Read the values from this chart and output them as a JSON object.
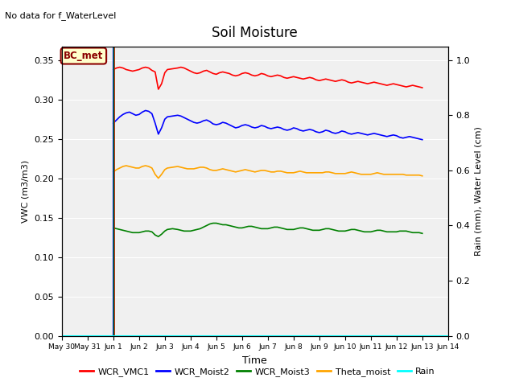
{
  "title": "Soil Moisture",
  "xlabel": "Time",
  "ylabel_left": "VWC (m3/m3)",
  "ylabel_right": "Rain (mm), Water Level (cm)",
  "ylim_left": [
    0.0,
    0.3675
  ],
  "ylim_right": [
    0.0,
    1.05
  ],
  "no_data_text": "No data for f_WaterLevel",
  "bc_met_label": "BC_met",
  "plot_bg_color": "#f0f0f0",
  "fig_bg_color": "#ffffff",
  "x_tick_labels": [
    "May 30",
    "May 31",
    "Jun 1",
    "Jun 2",
    "Jun 3",
    "Jun 4",
    "Jun 5",
    "Jun 6",
    "Jun 7",
    "Jun 8",
    "Jun 9",
    "Jun 10",
    "Jun 11",
    "Jun 12",
    "Jun 13",
    "Jun 14"
  ],
  "x_tick_positions": [
    0,
    1,
    2,
    3,
    4,
    5,
    6,
    7,
    8,
    9,
    10,
    11,
    12,
    13,
    14,
    15
  ],
  "yticks_left": [
    0.0,
    0.05,
    0.1,
    0.15,
    0.2,
    0.25,
    0.3,
    0.35
  ],
  "yticks_right": [
    0.0,
    0.2,
    0.4,
    0.6,
    0.8,
    1.0
  ],
  "vline_x": 2.0,
  "legend_items": [
    {
      "label": "WCR_VMC1",
      "color": "red"
    },
    {
      "label": "WCR_Moist2",
      "color": "blue"
    },
    {
      "label": "WCR_Moist3",
      "color": "green"
    },
    {
      "label": "Theta_moist",
      "color": "orange"
    },
    {
      "label": "Rain",
      "color": "cyan"
    }
  ],
  "series": {
    "WCR_VMC1": {
      "color": "red",
      "linewidth": 1.2,
      "data_x": [
        2.0,
        2.125,
        2.25,
        2.375,
        2.5,
        2.625,
        2.75,
        2.875,
        3.0,
        3.125,
        3.25,
        3.375,
        3.5,
        3.625,
        3.75,
        3.875,
        4.0,
        4.1,
        4.3,
        4.5,
        4.625,
        4.75,
        4.875,
        5.0,
        5.125,
        5.25,
        5.375,
        5.5,
        5.625,
        5.75,
        5.875,
        6.0,
        6.125,
        6.25,
        6.375,
        6.5,
        6.625,
        6.75,
        6.875,
        7.0,
        7.125,
        7.25,
        7.375,
        7.5,
        7.625,
        7.75,
        7.875,
        8.0,
        8.125,
        8.25,
        8.375,
        8.5,
        8.625,
        8.75,
        8.875,
        9.0,
        9.125,
        9.25,
        9.375,
        9.5,
        9.625,
        9.75,
        9.875,
        10.0,
        10.125,
        10.25,
        10.375,
        10.5,
        10.625,
        10.75,
        10.875,
        11.0,
        11.125,
        11.25,
        11.375,
        11.5,
        11.625,
        11.75,
        11.875,
        12.0,
        12.125,
        12.25,
        12.375,
        12.5,
        12.625,
        12.75,
        12.875,
        13.0,
        13.125,
        13.25,
        13.375,
        13.5,
        13.625,
        13.75,
        13.875,
        14.0
      ],
      "data_y": [
        0.338,
        0.34,
        0.341,
        0.34,
        0.338,
        0.337,
        0.336,
        0.337,
        0.338,
        0.34,
        0.341,
        0.34,
        0.337,
        0.335,
        0.313,
        0.32,
        0.334,
        0.338,
        0.339,
        0.34,
        0.341,
        0.34,
        0.338,
        0.336,
        0.334,
        0.333,
        0.334,
        0.336,
        0.337,
        0.335,
        0.333,
        0.332,
        0.334,
        0.335,
        0.334,
        0.333,
        0.331,
        0.33,
        0.331,
        0.333,
        0.334,
        0.333,
        0.331,
        0.33,
        0.331,
        0.333,
        0.332,
        0.33,
        0.329,
        0.33,
        0.331,
        0.33,
        0.328,
        0.327,
        0.328,
        0.329,
        0.328,
        0.327,
        0.326,
        0.327,
        0.328,
        0.327,
        0.325,
        0.324,
        0.325,
        0.326,
        0.325,
        0.324,
        0.323,
        0.324,
        0.325,
        0.324,
        0.322,
        0.321,
        0.322,
        0.323,
        0.322,
        0.321,
        0.32,
        0.321,
        0.322,
        0.321,
        0.32,
        0.319,
        0.318,
        0.319,
        0.32,
        0.319,
        0.318,
        0.317,
        0.316,
        0.317,
        0.318,
        0.317,
        0.316,
        0.315
      ]
    },
    "WCR_Moist2": {
      "color": "blue",
      "linewidth": 1.2,
      "data_x": [
        2.0,
        2.125,
        2.25,
        2.375,
        2.5,
        2.625,
        2.75,
        2.875,
        3.0,
        3.125,
        3.25,
        3.375,
        3.5,
        3.625,
        3.75,
        3.875,
        4.0,
        4.1,
        4.3,
        4.5,
        4.625,
        4.75,
        4.875,
        5.0,
        5.125,
        5.25,
        5.375,
        5.5,
        5.625,
        5.75,
        5.875,
        6.0,
        6.125,
        6.25,
        6.375,
        6.5,
        6.625,
        6.75,
        6.875,
        7.0,
        7.125,
        7.25,
        7.375,
        7.5,
        7.625,
        7.75,
        7.875,
        8.0,
        8.125,
        8.25,
        8.375,
        8.5,
        8.625,
        8.75,
        8.875,
        9.0,
        9.125,
        9.25,
        9.375,
        9.5,
        9.625,
        9.75,
        9.875,
        10.0,
        10.125,
        10.25,
        10.375,
        10.5,
        10.625,
        10.75,
        10.875,
        11.0,
        11.125,
        11.25,
        11.375,
        11.5,
        11.625,
        11.75,
        11.875,
        12.0,
        12.125,
        12.25,
        12.375,
        12.5,
        12.625,
        12.75,
        12.875,
        13.0,
        13.125,
        13.25,
        13.375,
        13.5,
        13.625,
        13.75,
        13.875,
        14.0
      ],
      "data_y": [
        0.27,
        0.274,
        0.278,
        0.281,
        0.283,
        0.284,
        0.282,
        0.28,
        0.281,
        0.284,
        0.286,
        0.285,
        0.282,
        0.27,
        0.256,
        0.264,
        0.275,
        0.278,
        0.279,
        0.28,
        0.279,
        0.277,
        0.275,
        0.273,
        0.271,
        0.27,
        0.271,
        0.273,
        0.274,
        0.272,
        0.269,
        0.268,
        0.269,
        0.271,
        0.27,
        0.268,
        0.266,
        0.264,
        0.265,
        0.267,
        0.268,
        0.267,
        0.265,
        0.264,
        0.265,
        0.267,
        0.266,
        0.264,
        0.263,
        0.264,
        0.265,
        0.264,
        0.262,
        0.261,
        0.262,
        0.264,
        0.263,
        0.261,
        0.26,
        0.261,
        0.262,
        0.261,
        0.259,
        0.258,
        0.259,
        0.261,
        0.26,
        0.258,
        0.257,
        0.258,
        0.26,
        0.259,
        0.257,
        0.256,
        0.257,
        0.258,
        0.257,
        0.256,
        0.255,
        0.256,
        0.257,
        0.256,
        0.255,
        0.254,
        0.253,
        0.254,
        0.255,
        0.254,
        0.252,
        0.251,
        0.252,
        0.253,
        0.252,
        0.251,
        0.25,
        0.249
      ]
    },
    "WCR_Moist3": {
      "color": "green",
      "linewidth": 1.2,
      "data_x": [
        2.0,
        2.125,
        2.25,
        2.375,
        2.5,
        2.625,
        2.75,
        2.875,
        3.0,
        3.125,
        3.25,
        3.375,
        3.5,
        3.625,
        3.75,
        3.875,
        4.0,
        4.1,
        4.3,
        4.5,
        4.625,
        4.75,
        4.875,
        5.0,
        5.125,
        5.25,
        5.375,
        5.5,
        5.625,
        5.75,
        5.875,
        6.0,
        6.125,
        6.25,
        6.375,
        6.5,
        6.625,
        6.75,
        6.875,
        7.0,
        7.125,
        7.25,
        7.375,
        7.5,
        7.625,
        7.75,
        7.875,
        8.0,
        8.125,
        8.25,
        8.375,
        8.5,
        8.625,
        8.75,
        8.875,
        9.0,
        9.125,
        9.25,
        9.375,
        9.5,
        9.625,
        9.75,
        9.875,
        10.0,
        10.125,
        10.25,
        10.375,
        10.5,
        10.625,
        10.75,
        10.875,
        11.0,
        11.125,
        11.25,
        11.375,
        11.5,
        11.625,
        11.75,
        11.875,
        12.0,
        12.125,
        12.25,
        12.375,
        12.5,
        12.625,
        12.75,
        12.875,
        13.0,
        13.125,
        13.25,
        13.375,
        13.5,
        13.625,
        13.75,
        13.875,
        14.0
      ],
      "data_y": [
        0.137,
        0.136,
        0.135,
        0.134,
        0.133,
        0.132,
        0.131,
        0.131,
        0.131,
        0.132,
        0.133,
        0.133,
        0.132,
        0.128,
        0.126,
        0.129,
        0.133,
        0.135,
        0.136,
        0.135,
        0.134,
        0.133,
        0.133,
        0.133,
        0.134,
        0.135,
        0.136,
        0.138,
        0.14,
        0.142,
        0.143,
        0.143,
        0.142,
        0.141,
        0.141,
        0.14,
        0.139,
        0.138,
        0.137,
        0.137,
        0.138,
        0.139,
        0.139,
        0.138,
        0.137,
        0.136,
        0.136,
        0.136,
        0.137,
        0.138,
        0.138,
        0.137,
        0.136,
        0.135,
        0.135,
        0.135,
        0.136,
        0.137,
        0.137,
        0.136,
        0.135,
        0.134,
        0.134,
        0.134,
        0.135,
        0.136,
        0.136,
        0.135,
        0.134,
        0.133,
        0.133,
        0.133,
        0.134,
        0.135,
        0.135,
        0.134,
        0.133,
        0.132,
        0.132,
        0.132,
        0.133,
        0.134,
        0.134,
        0.133,
        0.132,
        0.132,
        0.132,
        0.132,
        0.133,
        0.133,
        0.133,
        0.132,
        0.131,
        0.131,
        0.131,
        0.13
      ]
    },
    "Theta_moist": {
      "color": "orange",
      "linewidth": 1.2,
      "data_x": [
        2.0,
        2.125,
        2.25,
        2.375,
        2.5,
        2.625,
        2.75,
        2.875,
        3.0,
        3.125,
        3.25,
        3.375,
        3.5,
        3.625,
        3.75,
        3.875,
        4.0,
        4.1,
        4.3,
        4.5,
        4.625,
        4.75,
        4.875,
        5.0,
        5.125,
        5.25,
        5.375,
        5.5,
        5.625,
        5.75,
        5.875,
        6.0,
        6.125,
        6.25,
        6.375,
        6.5,
        6.625,
        6.75,
        6.875,
        7.0,
        7.125,
        7.25,
        7.375,
        7.5,
        7.625,
        7.75,
        7.875,
        8.0,
        8.125,
        8.25,
        8.375,
        8.5,
        8.625,
        8.75,
        8.875,
        9.0,
        9.125,
        9.25,
        9.375,
        9.5,
        9.625,
        9.75,
        9.875,
        10.0,
        10.125,
        10.25,
        10.375,
        10.5,
        10.625,
        10.75,
        10.875,
        11.0,
        11.125,
        11.25,
        11.375,
        11.5,
        11.625,
        11.75,
        11.875,
        12.0,
        12.125,
        12.25,
        12.375,
        12.5,
        12.625,
        12.75,
        12.875,
        13.0,
        13.125,
        13.25,
        13.375,
        13.5,
        13.625,
        13.75,
        13.875,
        14.0
      ],
      "data_y": [
        0.208,
        0.211,
        0.213,
        0.215,
        0.216,
        0.215,
        0.214,
        0.213,
        0.213,
        0.215,
        0.216,
        0.215,
        0.213,
        0.205,
        0.2,
        0.205,
        0.211,
        0.213,
        0.214,
        0.215,
        0.214,
        0.213,
        0.212,
        0.212,
        0.212,
        0.213,
        0.214,
        0.214,
        0.213,
        0.211,
        0.21,
        0.21,
        0.211,
        0.212,
        0.211,
        0.21,
        0.209,
        0.208,
        0.209,
        0.21,
        0.211,
        0.21,
        0.209,
        0.208,
        0.209,
        0.21,
        0.21,
        0.209,
        0.208,
        0.208,
        0.209,
        0.209,
        0.208,
        0.207,
        0.207,
        0.207,
        0.208,
        0.209,
        0.208,
        0.207,
        0.207,
        0.207,
        0.207,
        0.207,
        0.207,
        0.208,
        0.208,
        0.207,
        0.206,
        0.206,
        0.206,
        0.206,
        0.207,
        0.208,
        0.207,
        0.206,
        0.205,
        0.205,
        0.205,
        0.205,
        0.206,
        0.207,
        0.206,
        0.205,
        0.205,
        0.205,
        0.205,
        0.205,
        0.205,
        0.205,
        0.204,
        0.204,
        0.204,
        0.204,
        0.204,
        0.203
      ]
    },
    "Rain": {
      "color": "cyan",
      "linewidth": 1.5,
      "data_x": [
        0.0,
        15.0
      ],
      "data_y": [
        0.0,
        0.0
      ]
    }
  }
}
